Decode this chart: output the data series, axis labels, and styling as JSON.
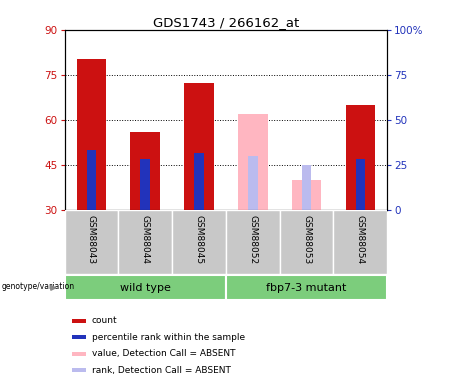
{
  "title": "GDS1743 / 266162_at",
  "samples": [
    "GSM88043",
    "GSM88044",
    "GSM88045",
    "GSM88052",
    "GSM88053",
    "GSM88054"
  ],
  "count_values": [
    80.5,
    56.0,
    72.5,
    0,
    0,
    65.0
  ],
  "rank_values": [
    50.0,
    47.0,
    49.0,
    0,
    0,
    47.0
  ],
  "absent_count_values": [
    0,
    0,
    0,
    62.0,
    40.0,
    0
  ],
  "absent_rank_values": [
    0,
    0,
    0,
    48.0,
    45.0,
    0
  ],
  "is_absent": [
    false,
    false,
    false,
    true,
    true,
    false
  ],
  "ylim": [
    30,
    90
  ],
  "y2lim": [
    0,
    100
  ],
  "yticks": [
    30,
    45,
    60,
    75,
    90
  ],
  "y2ticks": [
    0,
    25,
    50,
    75,
    100
  ],
  "bar_color_present": "#CC1111",
  "rank_color_present": "#2233BB",
  "bar_color_absent": "#FFB6C1",
  "rank_color_absent": "#BBBBEE",
  "bar_width": 0.55,
  "rank_bar_width": 0.18,
  "legend_items": [
    {
      "label": "count",
      "color": "#CC1111"
    },
    {
      "label": "percentile rank within the sample",
      "color": "#2233BB"
    },
    {
      "label": "value, Detection Call = ABSENT",
      "color": "#FFB6C1"
    },
    {
      "label": "rank, Detection Call = ABSENT",
      "color": "#BBBBEE"
    }
  ],
  "grid_color": "black",
  "left_yaxis_color": "#CC1111",
  "right_yaxis_color": "#2233BB",
  "label_bg": "#C8C8C8",
  "group_bg": "#7CCD7C"
}
